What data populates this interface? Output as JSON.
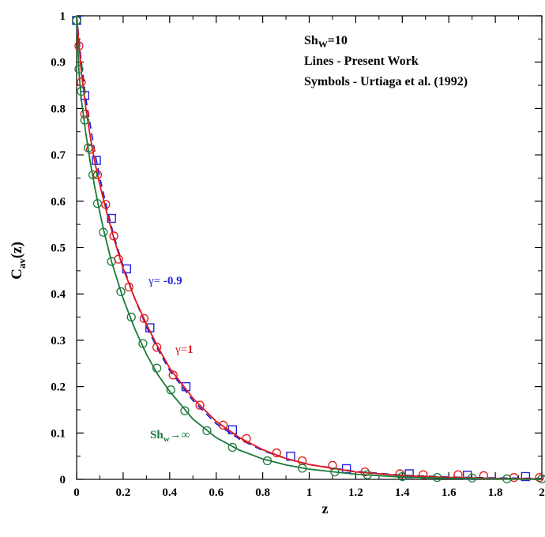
{
  "chart_data": {
    "type": "line",
    "xlabel": "z",
    "ylabel": "C",
    "ylabel_sub": "av",
    "ylabel_suffix": "(z)",
    "xlim": [
      0,
      2
    ],
    "ylim": [
      0,
      1
    ],
    "x_ticks": [
      0,
      0.2,
      0.4,
      0.6,
      0.8,
      1,
      1.2,
      1.4,
      1.6,
      1.8,
      2
    ],
    "x_tick_labels": [
      "0",
      "0.2",
      "0.4",
      "0.6",
      "0.8",
      "1",
      "1.2",
      "1.4",
      "1.6",
      "1.8",
      "2"
    ],
    "y_ticks": [
      0,
      0.1,
      0.2,
      0.3,
      0.4,
      0.5,
      0.6,
      0.7,
      0.8,
      0.9,
      1
    ],
    "y_tick_labels": [
      "0",
      "0.1",
      "0.2",
      "0.3",
      "0.4",
      "0.5",
      "0.6",
      "0.7",
      "0.8",
      "0.9",
      "1"
    ],
    "grid": false,
    "legend_text": {
      "line1_main": "Sh",
      "line1_sub": "W",
      "line1_tail": "=10",
      "line2": "Lines - Present Work",
      "line3": "Symbols  - Urtiaga et al. (1992)"
    },
    "series": [
      {
        "label_main": "γ=",
        "label_tail": " -0.9",
        "color": "#2222dd",
        "line_style": "dashed",
        "marker": "square",
        "line_x": [
          0,
          0.02,
          0.04,
          0.06,
          0.08,
          0.1,
          0.13,
          0.16,
          0.2,
          0.25,
          0.3,
          0.35,
          0.4,
          0.5,
          0.6,
          0.7,
          0.8,
          0.9,
          1.0,
          1.2,
          1.4,
          1.6,
          1.8,
          2.0
        ],
        "line_y": [
          1.0,
          0.9,
          0.82,
          0.76,
          0.7,
          0.65,
          0.585,
          0.525,
          0.46,
          0.39,
          0.33,
          0.28,
          0.235,
          0.17,
          0.12,
          0.087,
          0.062,
          0.045,
          0.032,
          0.017,
          0.009,
          0.005,
          0.003,
          0.002
        ],
        "points_x": [
          0,
          0.035,
          0.085,
          0.15,
          0.215,
          0.315,
          0.47,
          0.67,
          0.92,
          1.16,
          1.43,
          1.68,
          1.93
        ],
        "points_y": [
          0.99,
          0.828,
          0.688,
          0.563,
          0.454,
          0.327,
          0.2,
          0.107,
          0.05,
          0.023,
          0.012,
          0.009,
          0.006
        ]
      },
      {
        "label_main": "γ=",
        "label_tail": "1",
        "color": "#e01818",
        "line_style": "solid",
        "marker": "circle",
        "line_x": [
          0,
          0.02,
          0.04,
          0.06,
          0.08,
          0.1,
          0.13,
          0.16,
          0.2,
          0.25,
          0.3,
          0.35,
          0.4,
          0.5,
          0.6,
          0.7,
          0.8,
          0.9,
          1.0,
          1.2,
          1.4,
          1.6,
          1.8,
          2.0
        ],
        "line_y": [
          1.0,
          0.88,
          0.8,
          0.735,
          0.68,
          0.635,
          0.575,
          0.52,
          0.455,
          0.39,
          0.335,
          0.285,
          0.24,
          0.175,
          0.125,
          0.09,
          0.064,
          0.045,
          0.032,
          0.016,
          0.008,
          0.004,
          0.002,
          0.001
        ],
        "points_x": [
          0,
          0.01,
          0.02,
          0.035,
          0.06,
          0.09,
          0.125,
          0.16,
          0.18,
          0.225,
          0.29,
          0.345,
          0.415,
          0.53,
          0.63,
          0.73,
          0.86,
          0.97,
          1.1,
          1.24,
          1.39,
          1.49,
          1.64,
          1.75,
          1.88,
          1.99
        ],
        "points_y": [
          0.99,
          0.935,
          0.857,
          0.788,
          0.712,
          0.657,
          0.593,
          0.525,
          0.475,
          0.415,
          0.347,
          0.285,
          0.225,
          0.16,
          0.117,
          0.088,
          0.057,
          0.04,
          0.03,
          0.016,
          0.012,
          0.01,
          0.01,
          0.008,
          0.004,
          0.004
        ]
      },
      {
        "label_main": "Sh",
        "label_sub": "w",
        "label_tail": "→∞",
        "color": "#1a7a3a",
        "line_style": "solid",
        "marker": "circle",
        "line_x": [
          0,
          0.01,
          0.02,
          0.04,
          0.06,
          0.08,
          0.1,
          0.12,
          0.15,
          0.2,
          0.25,
          0.3,
          0.35,
          0.4,
          0.5,
          0.6,
          0.7,
          0.8,
          0.9,
          1.0,
          1.2,
          1.4,
          1.6,
          1.8,
          2.0
        ],
        "line_y": [
          1.0,
          0.88,
          0.82,
          0.745,
          0.68,
          0.625,
          0.575,
          0.53,
          0.47,
          0.39,
          0.325,
          0.27,
          0.225,
          0.19,
          0.13,
          0.09,
          0.063,
          0.044,
          0.031,
          0.022,
          0.011,
          0.005,
          0.002,
          0.001,
          0.0
        ],
        "points_x": [
          0,
          0.01,
          0.02,
          0.035,
          0.05,
          0.07,
          0.09,
          0.115,
          0.15,
          0.19,
          0.235,
          0.285,
          0.345,
          0.405,
          0.465,
          0.56,
          0.67,
          0.82,
          0.97,
          1.11,
          1.25,
          1.4,
          1.55,
          1.7,
          1.85,
          2.0
        ],
        "points_y": [
          0.99,
          0.885,
          0.837,
          0.775,
          0.715,
          0.657,
          0.595,
          0.533,
          0.47,
          0.405,
          0.35,
          0.293,
          0.24,
          0.193,
          0.148,
          0.105,
          0.069,
          0.04,
          0.024,
          0.016,
          0.01,
          0.006,
          0.004,
          0.003,
          0.001,
          0.001
        ]
      }
    ]
  }
}
